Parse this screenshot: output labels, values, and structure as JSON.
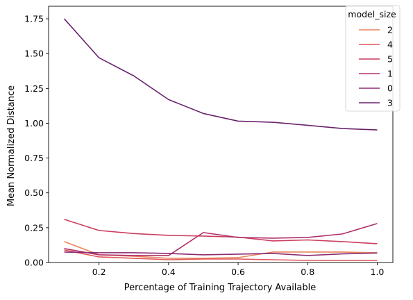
{
  "chart_data": {
    "type": "line",
    "title": "",
    "xlabel": "Percentage of Training Trajectory Available",
    "ylabel": "Mean Normalized Distance",
    "xlim": [
      0.055,
      1.045
    ],
    "ylim": [
      0,
      1.84
    ],
    "xticks": [
      "0.2",
      "0.4",
      "0.6",
      "0.8",
      "1.0"
    ],
    "yticks": [
      "0.00",
      "0.25",
      "0.50",
      "0.75",
      "1.00",
      "1.25",
      "1.50",
      "1.75"
    ],
    "grid": false,
    "legend": {
      "title": "model_size",
      "placement": "top-right"
    },
    "x": [
      0.1,
      0.2,
      0.3,
      0.4,
      0.5,
      0.6,
      0.7,
      0.8,
      0.9,
      1.0
    ],
    "series": [
      {
        "name": "2",
        "color": "#e8845a",
        "values": [
          0.15,
          0.055,
          0.045,
          0.03,
          0.03,
          0.035,
          0.075,
          0.075,
          0.075,
          0.07
        ]
      },
      {
        "name": "4",
        "color": "#e15759",
        "values": [
          0.09,
          0.04,
          0.03,
          0.02,
          0.025,
          0.025,
          0.02,
          0.015,
          0.015,
          0.015
        ]
      },
      {
        "name": "5",
        "color": "#cc3d5e",
        "values": [
          0.31,
          0.23,
          0.208,
          0.195,
          0.19,
          0.182,
          0.155,
          0.162,
          0.15,
          0.135
        ]
      },
      {
        "name": "1",
        "color": "#b0306a",
        "values": [
          0.1,
          0.055,
          0.05,
          0.05,
          0.215,
          0.18,
          0.175,
          0.18,
          0.205,
          0.28
        ]
      },
      {
        "name": "0",
        "color": "#8c2a72",
        "values": [
          0.075,
          0.07,
          0.07,
          0.065,
          0.055,
          0.06,
          0.065,
          0.05,
          0.062,
          0.068
        ]
      },
      {
        "name": "3",
        "color": "#6a226e",
        "values": [
          1.75,
          1.47,
          1.34,
          1.17,
          1.07,
          1.015,
          1.007,
          0.985,
          0.962,
          0.952
        ]
      }
    ]
  }
}
